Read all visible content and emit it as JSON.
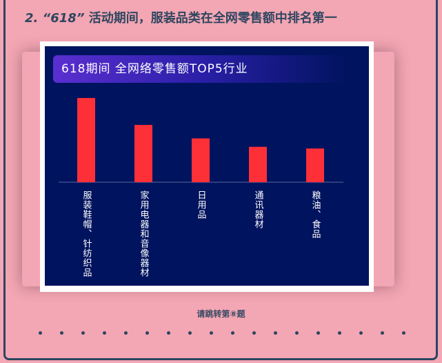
{
  "heading": {
    "number": "2.",
    "quote": "“618”",
    "text": "活动期间，服装品类在全网零售额中排名第一"
  },
  "chart_data": {
    "type": "bar",
    "title": "618期间   全网络零售额TOP5行业",
    "categories": [
      "服装鞋帽、针纺织品",
      "家用电器和音像器材",
      "日用品",
      "通讯器材",
      "粮油、食品"
    ],
    "values": [
      100,
      68,
      52,
      42,
      40
    ],
    "bar_color": "#fe3037",
    "background": "#00135e",
    "axes_shown": false,
    "grid": false
  },
  "footer": {
    "text": "请跳转第⑧题"
  },
  "colors": {
    "page": "#f3a6b3",
    "border": "#2a4560"
  }
}
